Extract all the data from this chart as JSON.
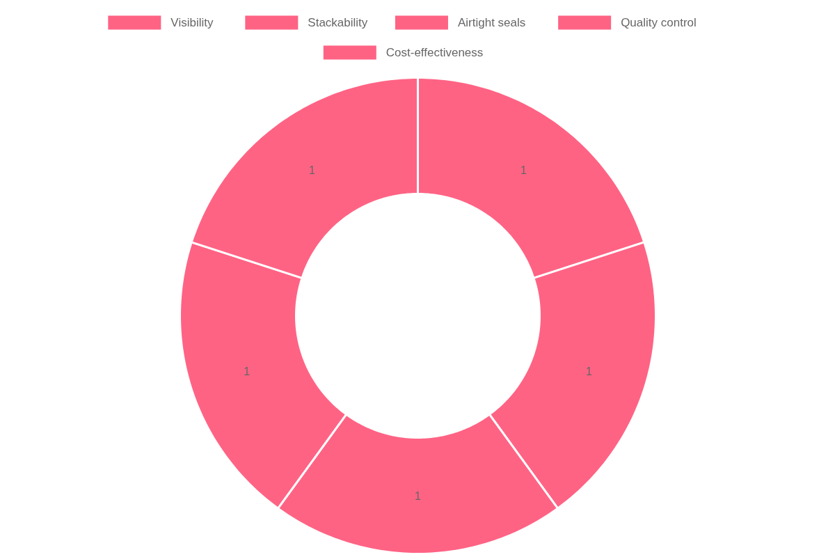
{
  "chart_data": {
    "type": "donut",
    "categories": [
      "Visibility",
      "Stackability",
      "Airtight seals",
      "Quality control",
      "Cost-effectiveness"
    ],
    "values": [
      1,
      1,
      1,
      1,
      1
    ],
    "colors": [
      "#ff6384",
      "#ff6384",
      "#ff6384",
      "#ff6384",
      "#ff6384"
    ],
    "data_labels": true,
    "legend": "top"
  }
}
